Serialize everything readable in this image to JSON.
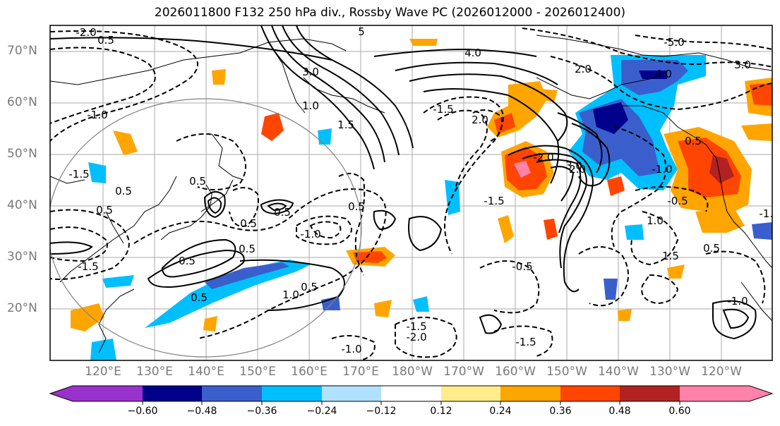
{
  "title": "2026011800 F132 250 hPa div., Rossby Wave PC (2026012000 - 2026012400)",
  "lat_labels": [
    "70°N",
    "60°N",
    "50°N",
    "40°N",
    "30°N",
    "20°N"
  ],
  "lon_labels": [
    "120°E",
    "130°E",
    "140°E",
    "150°E",
    "160°E",
    "170°E",
    "180°W",
    "170°W",
    "160°W",
    "150°W",
    "140°W",
    "130°W",
    "120°W"
  ],
  "contour_labels": [
    "-2.0",
    "0.5",
    "5",
    "4.0",
    "-5.0",
    "2.0",
    "3.0",
    "3.0",
    "4.0",
    "-1.0",
    "1.0",
    "1.5",
    "-1.5",
    "2.0",
    "-1.0",
    "0.5",
    "-2.0",
    "2.0",
    "0.5",
    "-1.5",
    "-1.5",
    "0.5",
    "0.5",
    "-1.0",
    "0.5",
    "1.0",
    "0.5",
    "-0.5",
    "-1.0",
    "0.5",
    "0.5",
    "-0.5",
    "1.5",
    "0.5",
    "-1.0",
    "-1.5",
    "0.5",
    "-2.0",
    "-1.5",
    "-1.5",
    "-1.0",
    "1.0",
    "0.5",
    "3.0",
    "0.5"
  ],
  "colorbar": {
    "ticks": [
      "−0.60",
      "−0.48",
      "−0.36",
      "−0.24",
      "−0.12",
      "0.12",
      "0.24",
      "0.36",
      "0.48",
      "0.60"
    ],
    "colors": [
      "#9932cc",
      "#00008b",
      "#3a5fcd",
      "#00bfff",
      "#b0e2ff",
      "#ffffff",
      "#ffec8b",
      "#ffa500",
      "#ff4500",
      "#b22222",
      "#ff82ab"
    ]
  },
  "colors": {
    "blue_dark": "#00008b",
    "blue_mid": "#3a5fcd",
    "blue_light": "#00bfff",
    "orange": "#ffa500",
    "red_orange": "#ff4500",
    "dark_red": "#b22222",
    "pink": "#ff82ab",
    "yellow": "#ffec8b"
  }
}
